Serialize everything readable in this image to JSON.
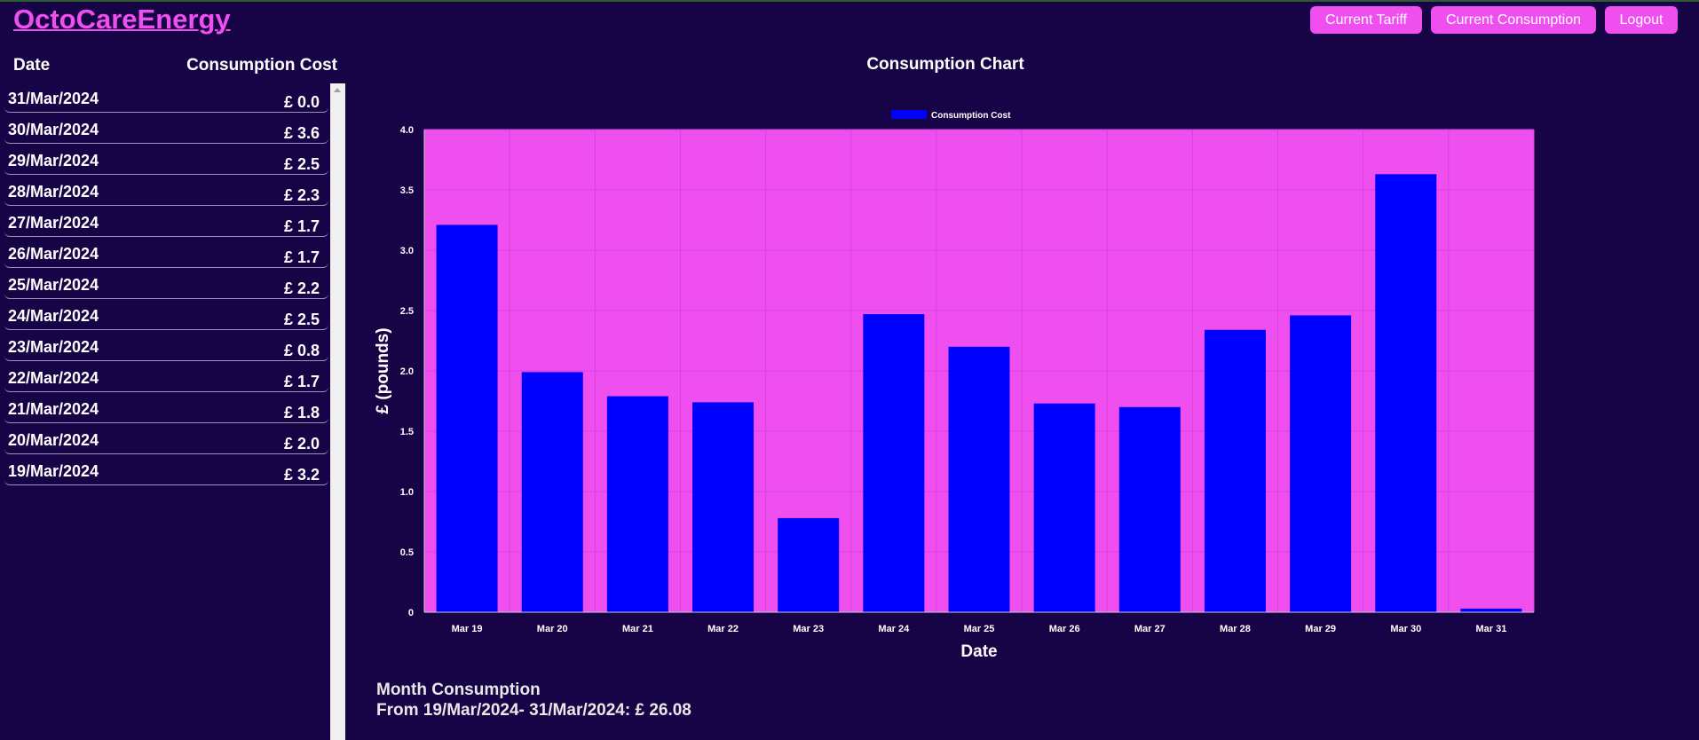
{
  "app": {
    "brand": "OctoCareEnergy"
  },
  "nav": {
    "current_tariff": "Current Tariff",
    "current_consumption": "Current Consumption",
    "logout": "Logout"
  },
  "table": {
    "headers": {
      "date": "Date",
      "cost": "Consumption Cost"
    },
    "rows": [
      {
        "date": "31/Mar/2024",
        "cost": "£ 0.0"
      },
      {
        "date": "30/Mar/2024",
        "cost": "£ 3.6"
      },
      {
        "date": "29/Mar/2024",
        "cost": "£ 2.5"
      },
      {
        "date": "28/Mar/2024",
        "cost": "£ 2.3"
      },
      {
        "date": "27/Mar/2024",
        "cost": "£ 1.7"
      },
      {
        "date": "26/Mar/2024",
        "cost": "£ 1.7"
      },
      {
        "date": "25/Mar/2024",
        "cost": "£ 2.2"
      },
      {
        "date": "24/Mar/2024",
        "cost": "£ 2.5"
      },
      {
        "date": "23/Mar/2024",
        "cost": "£ 0.8"
      },
      {
        "date": "22/Mar/2024",
        "cost": "£ 1.7"
      },
      {
        "date": "21/Mar/2024",
        "cost": "£ 1.8"
      },
      {
        "date": "20/Mar/2024",
        "cost": "£ 2.0"
      },
      {
        "date": "19/Mar/2024",
        "cost": "£ 3.2"
      }
    ]
  },
  "chart": {
    "heading": "Consumption Chart"
  },
  "chart_data": {
    "type": "bar",
    "categories": [
      "Mar 19",
      "Mar 20",
      "Mar 21",
      "Mar 22",
      "Mar 23",
      "Mar 24",
      "Mar 25",
      "Mar 26",
      "Mar 27",
      "Mar 28",
      "Mar 29",
      "Mar 30",
      "Mar 31"
    ],
    "series": [
      {
        "name": "Consumption Cost",
        "values": [
          3.21,
          1.99,
          1.79,
          1.74,
          0.78,
          2.47,
          2.2,
          1.73,
          1.7,
          2.34,
          2.46,
          3.63,
          0.03
        ]
      }
    ],
    "xlabel": "Date",
    "ylabel": "£ (pounds)",
    "ylim": [
      0,
      4
    ],
    "yticks": [
      "0",
      "0.5",
      "1.0",
      "1.5",
      "2.0",
      "2.5",
      "3.0",
      "3.5",
      "4.0"
    ],
    "grid": true,
    "legend": "top-center",
    "colors": {
      "bar": "#0000ff",
      "plot_bg": "#f04ff0",
      "grid": "#d940e0"
    }
  },
  "summary": {
    "title": "Month Consumption",
    "line": "From 19/Mar/2024- 31/Mar/2024: £ 26.08"
  },
  "colors": {
    "background": "#170447",
    "accent": "#f04ff0"
  }
}
